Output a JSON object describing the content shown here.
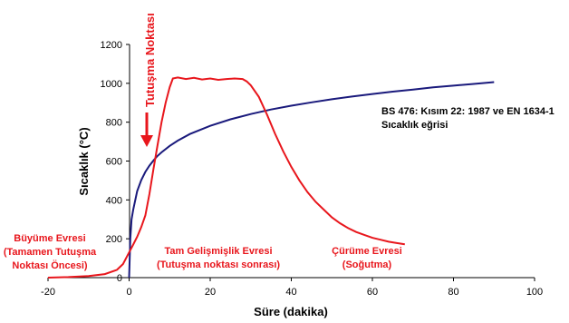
{
  "chart_data": {
    "type": "line",
    "xlabel": "Süre (dakika)",
    "ylabel": "Sıcaklık (°C)",
    "xlim": [
      -20,
      100
    ],
    "ylim": [
      0,
      1200
    ],
    "x_ticks": [
      "-20",
      "0",
      "20",
      "40",
      "60",
      "80",
      "100"
    ],
    "y_ticks": [
      "0",
      "200",
      "400",
      "600",
      "800",
      "1000",
      "1200"
    ],
    "grid": false,
    "colors": {
      "fire_curve": "#e8161c",
      "standard_curve": "#1a1a7c"
    },
    "series": [
      {
        "key": "fire_curve",
        "points": [
          [
            -20,
            0
          ],
          [
            -15,
            3
          ],
          [
            -10,
            8
          ],
          [
            -6,
            18
          ],
          [
            -3,
            40
          ],
          [
            -1.5,
            70
          ],
          [
            0,
            130
          ],
          [
            1,
            170
          ],
          [
            2,
            210
          ],
          [
            3,
            260
          ],
          [
            4,
            320
          ],
          [
            5,
            430
          ],
          [
            6,
            560
          ],
          [
            7,
            680
          ],
          [
            8,
            800
          ],
          [
            9,
            900
          ],
          [
            10,
            980
          ],
          [
            10.8,
            1025
          ],
          [
            12,
            1030
          ],
          [
            14,
            1022
          ],
          [
            16,
            1028
          ],
          [
            18,
            1020
          ],
          [
            20,
            1025
          ],
          [
            22,
            1018
          ],
          [
            24,
            1022
          ],
          [
            26,
            1025
          ],
          [
            28,
            1022
          ],
          [
            29,
            1010
          ],
          [
            30,
            990
          ],
          [
            32,
            930
          ],
          [
            34,
            840
          ],
          [
            36,
            740
          ],
          [
            38,
            650
          ],
          [
            40,
            570
          ],
          [
            42,
            500
          ],
          [
            44,
            440
          ],
          [
            46,
            390
          ],
          [
            48,
            350
          ],
          [
            50,
            310
          ],
          [
            52,
            280
          ],
          [
            54,
            255
          ],
          [
            56,
            235
          ],
          [
            58,
            220
          ],
          [
            60,
            205
          ],
          [
            62,
            195
          ],
          [
            64,
            185
          ],
          [
            66,
            178
          ],
          [
            68,
            172
          ]
        ]
      },
      {
        "key": "standard_curve",
        "points": [
          [
            0,
            0
          ],
          [
            0.3,
            200
          ],
          [
            0.6,
            300
          ],
          [
            1,
            349
          ],
          [
            2,
            445
          ],
          [
            3,
            502
          ],
          [
            4,
            544
          ],
          [
            5,
            576
          ],
          [
            6,
            603
          ],
          [
            7,
            626
          ],
          [
            8,
            645
          ],
          [
            10,
            678
          ],
          [
            12,
            705
          ],
          [
            15,
            739
          ],
          [
            20,
            781
          ],
          [
            25,
            815
          ],
          [
            30,
            842
          ],
          [
            35,
            865
          ],
          [
            40,
            885
          ],
          [
            45,
            902
          ],
          [
            50,
            918
          ],
          [
            55,
            932
          ],
          [
            60,
            945
          ],
          [
            65,
            957
          ],
          [
            70,
            968
          ],
          [
            75,
            979
          ],
          [
            80,
            988
          ],
          [
            85,
            997
          ],
          [
            90,
            1006
          ]
        ]
      }
    ],
    "annotations": {
      "ignition_point": "Tutuşma Noktası",
      "standard_curve_line1": "BS 476: Kısım 22: 1987 ve EN 1634-1",
      "standard_curve_line2": "Sıcaklık eğrisi",
      "growth_line1": "Büyüme Evresi",
      "growth_line2": "(Tamamen Tutuşma",
      "growth_line3": "Noktası Öncesi)",
      "full_line1": "Tam Gelişmişlik Evresi",
      "full_line2": "(Tutuşma noktası sonrası)",
      "decay_line1": "Çürüme Evresi",
      "decay_line2": "(Soğutma)"
    }
  }
}
